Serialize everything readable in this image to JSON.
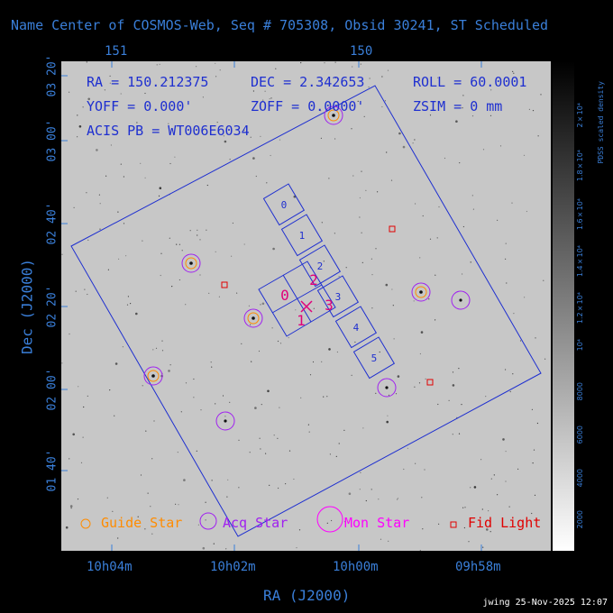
{
  "title": "Name Center of COSMOS-Web, Seq # 705308, Obsid 30241, ST Scheduled",
  "info": {
    "ra": "RA = 150.212375",
    "dec": "DEC = 2.342653",
    "roll": "ROLL = 60.0001",
    "yoff": "YOFF =  0.000'",
    "zoff": "ZOFF =  0.0000'",
    "zsim": "ZSIM = 0 mm",
    "acis": "ACIS PB = WT006E6034"
  },
  "axes": {
    "xlabel": "RA (J2000)",
    "ylabel": "Dec (J2000)",
    "x_ticks": [
      "10h04m",
      "10h02m",
      "10h00m",
      "09h58m"
    ],
    "top_ticks": [
      "151",
      "150"
    ],
    "y_ticks": [
      "03 20'",
      "03 00'",
      "02 40'",
      "02 20'",
      "02 00'",
      "01 40'"
    ]
  },
  "colorbar": {
    "label": "PDSS scaled density",
    "ticks": [
      "2000",
      "4000",
      "6000",
      "8000",
      "10⁴",
      "1.2×10⁴",
      "1.4×10⁴",
      "1.6×10⁴",
      "1.8×10⁴",
      "2×10⁴"
    ]
  },
  "legend": {
    "guide": "Guide Star",
    "acq": "Acq Star",
    "mon": "Mon Star",
    "fid": "Fid Light"
  },
  "ccd_labels": [
    "0",
    "1",
    "2",
    "3",
    "4",
    "5"
  ],
  "aci_labels": [
    "0",
    "2",
    "3",
    "1"
  ],
  "footer": "jwing 25-Nov-2025 12:07",
  "colors": {
    "text": "#3a7fd9",
    "fov": "#1e2fd0",
    "guide": "#ff8c00",
    "acq": "#a020f0",
    "fid": "#e00000",
    "aci": "#e0007a"
  }
}
